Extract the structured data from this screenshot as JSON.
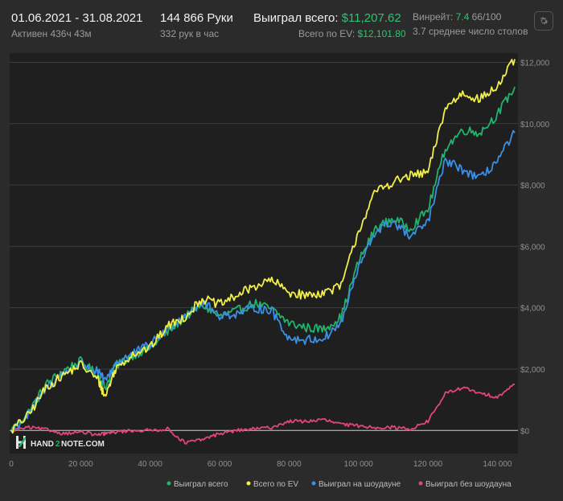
{
  "header": {
    "date_range": "01.06.2021 - 31.08.2021",
    "active_time": "Активен 436ч 43м",
    "hands": "144 866 Руки",
    "hands_per_hour": "332 рук в час",
    "won_total_label": "Выиграл всего:",
    "won_total_value": "$11,207.62",
    "ev_total_label": "Всего по EV:",
    "ev_total_value": "$12,101.80",
    "winrate_label": "Винрейт:",
    "winrate_value": "7.4",
    "winrate_unit": "66/100",
    "avg_tables": "3.7 среднее число столов"
  },
  "watermark": {
    "hand": "HAND",
    "two": "2",
    "note": "NOTE.COM"
  },
  "chart_data": {
    "type": "line",
    "title": "",
    "xlabel": "",
    "ylabel": "",
    "xlim": [
      0,
      145000
    ],
    "ylim": [
      -700,
      12300
    ],
    "x_ticks": [
      0,
      20000,
      40000,
      60000,
      80000,
      100000,
      120000,
      140000
    ],
    "x_tick_labels": [
      "0",
      "20 000",
      "40 000",
      "60 000",
      "80 000",
      "100 000",
      "120 000",
      "140 000"
    ],
    "y_ticks": [
      0,
      2000,
      4000,
      6000,
      8000,
      10000,
      12000
    ],
    "y_tick_labels": [
      "$0",
      "$2,000",
      "$4,000",
      "$6,000",
      "$8,000",
      "$10,000",
      "$12,000"
    ],
    "grid": "horizontal",
    "legend_position": "bottom",
    "x": [
      0,
      5000,
      10000,
      15000,
      20000,
      25000,
      27000,
      30000,
      35000,
      40000,
      45000,
      50000,
      55000,
      60000,
      65000,
      70000,
      75000,
      80000,
      85000,
      90000,
      95000,
      100000,
      105000,
      110000,
      115000,
      120000,
      125000,
      130000,
      135000,
      140000,
      145000
    ],
    "series": [
      {
        "name": "Выиграл всего",
        "color": "#21b36b",
        "values": [
          0,
          600,
          1500,
          1950,
          2250,
          1800,
          1400,
          2100,
          2450,
          2700,
          3200,
          3700,
          4100,
          3700,
          3900,
          4150,
          3950,
          3500,
          3350,
          3300,
          3700,
          5500,
          6600,
          6900,
          6600,
          7200,
          9200,
          9800,
          9700,
          10300,
          11200
        ]
      },
      {
        "name": "Всего по EV",
        "color": "#f2ef4a",
        "values": [
          0,
          500,
          1400,
          1800,
          2150,
          1650,
          1100,
          2000,
          2500,
          2700,
          3400,
          3700,
          4300,
          4100,
          4400,
          4700,
          4900,
          4500,
          4400,
          4500,
          4700,
          6500,
          7800,
          8100,
          8300,
          8400,
          10500,
          11000,
          10800,
          11200,
          12100
        ]
      },
      {
        "name": "Выиграл на шоудауне",
        "color": "#3b8fe6",
        "values": [
          0,
          500,
          1400,
          1850,
          2200,
          1900,
          1600,
          2200,
          2500,
          2800,
          3300,
          3750,
          4200,
          3750,
          3800,
          4000,
          3900,
          3000,
          2950,
          3000,
          3500,
          5300,
          6500,
          6800,
          6300,
          6800,
          8800,
          8500,
          8200,
          8800,
          9700
        ]
      },
      {
        "name": "Выиграл без шоудауна",
        "color": "#e0457b",
        "values": [
          0,
          100,
          30,
          -100,
          -50,
          -150,
          -100,
          -50,
          0,
          0,
          50,
          -400,
          -300,
          -100,
          0,
          50,
          100,
          300,
          300,
          350,
          200,
          150,
          100,
          100,
          50,
          300,
          1200,
          1400,
          1200,
          1100,
          1500
        ]
      }
    ]
  }
}
